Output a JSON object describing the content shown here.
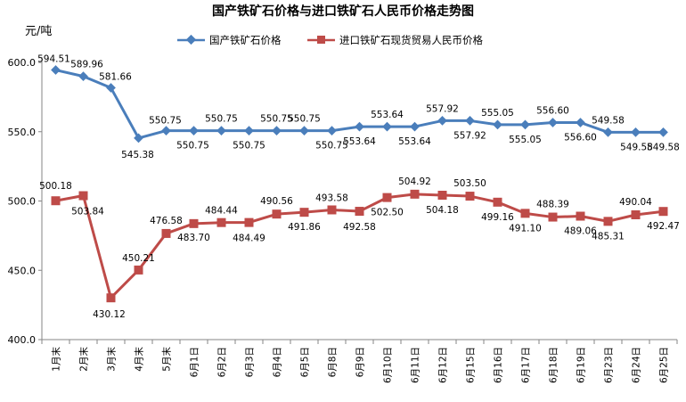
{
  "chart_data": {
    "type": "line",
    "title": "国产铁矿石价格与进口铁矿石人民币价格走势图",
    "ylabel": "元/吨",
    "ylim": [
      400,
      600
    ],
    "yticks": [
      "400.0",
      "450.0",
      "500.0",
      "550.0",
      "600.0"
    ],
    "ytick_values": [
      400,
      450,
      500,
      550,
      600
    ],
    "grid": false,
    "legend_position": "top",
    "categories": [
      "1月末",
      "2月末",
      "3月末",
      "4月末",
      "5月末",
      "6月1日",
      "6月2日",
      "6月3日",
      "6月4日",
      "6月5日",
      "6月8日",
      "6月9日",
      "6月10日",
      "6月11日",
      "6月12日",
      "6月15日",
      "6月16日",
      "6月17日",
      "6月18日",
      "6月19日",
      "6月23日",
      "6月24日",
      "6月25日"
    ],
    "series": [
      {
        "name": "国产铁矿石价格",
        "color": "#4a7ebb",
        "marker": "diamond",
        "values": [
          594.51,
          589.96,
          581.66,
          545.38,
          550.75,
          550.75,
          550.75,
          550.75,
          550.75,
          550.75,
          550.75,
          553.64,
          553.64,
          553.64,
          557.92,
          557.92,
          555.05,
          555.05,
          556.6,
          556.6,
          549.58,
          549.58,
          549.58
        ],
        "labels": [
          "594.51",
          "589.96",
          "581.66",
          "545.38",
          "550.75",
          "550.75",
          "550.75",
          "550.75",
          "550.75",
          "550.75",
          "550.75",
          "553.64",
          "553.64",
          "553.64",
          "557.92",
          "557.92",
          "555.05",
          "555.05",
          "556.60",
          "556.60",
          "549.58",
          "549.58",
          "549.58"
        ]
      },
      {
        "name": "进口铁矿石现货贸易人民币价格",
        "color": "#be4b48",
        "marker": "square",
        "values": [
          500.18,
          503.84,
          430.12,
          450.21,
          476.58,
          483.7,
          484.44,
          484.49,
          490.56,
          491.86,
          493.58,
          492.58,
          502.5,
          504.92,
          504.18,
          503.5,
          499.16,
          491.1,
          488.39,
          489.06,
          485.31,
          490.04,
          492.47
        ],
        "labels": [
          "500.18",
          "503.84",
          "430.12",
          "450.21",
          "476.58",
          "483.70",
          "484.44",
          "484.49",
          "490.56",
          "491.86",
          "493.58",
          "492.58",
          "502.50",
          "504.92",
          "504.18",
          "503.50",
          "499.16",
          "491.10",
          "488.39",
          "489.06",
          "485.31",
          "490.04",
          "492.47"
        ]
      }
    ]
  }
}
